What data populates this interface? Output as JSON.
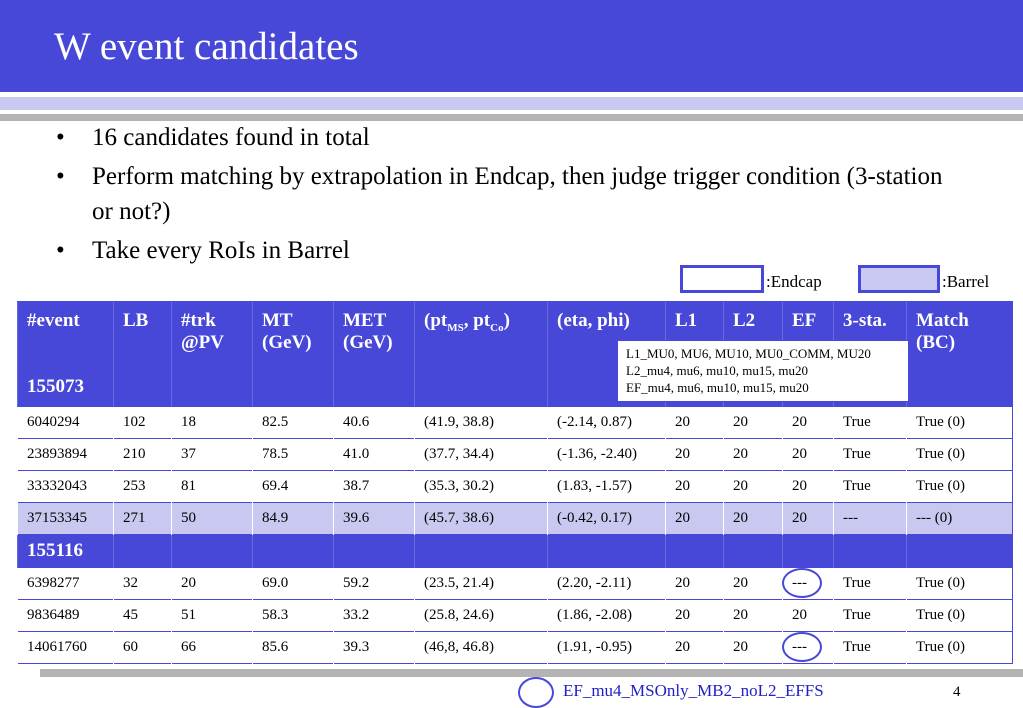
{
  "title": "W event candidates",
  "bullets": [
    "16 candidates found in total",
    "Perform matching by extrapolation in Endcap, then judge trigger condition (3-station or not?)",
    "Take every RoIs in Barrel"
  ],
  "legend": {
    "endcap_label": ":Endcap",
    "barrel_label": ":Barrel",
    "endcap_color": "#ffffff",
    "barrel_color": "#c8c8f0"
  },
  "table": {
    "headers": {
      "event": "#event",
      "lb": "LB",
      "trk_line1": "#trk",
      "trk_line2": "@PV",
      "mt_line1": "MT",
      "mt_line2": "(GeV)",
      "met_line1": "MET",
      "met_line2": "(GeV)",
      "pt_main": "(pt",
      "pt_sub1": "MS",
      "pt_sep": ", pt",
      "pt_sub2": "Co",
      "pt_end": ")",
      "etaphi": "(eta, phi)",
      "l1": "L1",
      "l2": "L2",
      "ef": "EF",
      "sta": "3-sta.",
      "match_line1": "Match",
      "match_line2": "(BC)"
    },
    "run1": "155073",
    "run2": "155116",
    "rows_run1": [
      {
        "event": "6040294",
        "lb": "102",
        "trk": "18",
        "mt": "82.5",
        "met": "40.6",
        "pt": "(41.9, 38.8)",
        "etaphi": "(-2.14, 0.87)",
        "l1": "20",
        "l2": "20",
        "ef": "20",
        "sta": "True",
        "match": "True (0)"
      },
      {
        "event": "23893894",
        "lb": "210",
        "trk": "37",
        "mt": "78.5",
        "met": "41.0",
        "pt": "(37.7, 34.4)",
        "etaphi": "(-1.36, -2.40)",
        "l1": "20",
        "l2": "20",
        "ef": "20",
        "sta": "True",
        "match": "True (0)"
      },
      {
        "event": "33332043",
        "lb": "253",
        "trk": "81",
        "mt": "69.4",
        "met": "38.7",
        "pt": "(35.3, 30.2)",
        "etaphi": "(1.83, -1.57)",
        "l1": "20",
        "l2": "20",
        "ef": "20",
        "sta": "True",
        "match": "True (0)"
      },
      {
        "event": "37153345",
        "lb": "271",
        "trk": "50",
        "mt": "84.9",
        "met": "39.6",
        "pt": "(45.7, 38.6)",
        "etaphi": "(-0.42, 0.17)",
        "l1": "20",
        "l2": "20",
        "ef": "20",
        "sta": "---",
        "match": "--- (0)"
      }
    ],
    "rows_run2": [
      {
        "event": "6398277",
        "lb": "32",
        "trk": "20",
        "mt": "69.0",
        "met": "59.2",
        "pt": "(23.5, 21.4)",
        "etaphi": "(2.20, -2.11)",
        "l1": "20",
        "l2": "20",
        "ef": "---",
        "sta": "True",
        "match": "True (0)"
      },
      {
        "event": "9836489",
        "lb": "45",
        "trk": "51",
        "mt": "58.3",
        "met": "33.2",
        "pt": "(25.8, 24.6)",
        "etaphi": "(1.86, -2.08)",
        "l1": "20",
        "l2": "20",
        "ef": "20",
        "sta": "True",
        "match": "True (0)"
      },
      {
        "event": "14061760",
        "lb": "60",
        "trk": "66",
        "mt": "85.6",
        "met": "39.3",
        "pt": "(46,8, 46.8)",
        "etaphi": "(1.91, -0.95)",
        "l1": "20",
        "l2": "20",
        "ef": "---",
        "sta": "True",
        "match": "True (0)"
      }
    ]
  },
  "trigger_box": [
    "L1_MU0, MU6, MU10, MU0_COMM, MU20",
    "L2_mu4, mu6, mu10, mu15, mu20",
    "EF_mu4, mu6, mu10, mu15, mu20"
  ],
  "footer": {
    "trigger_name": "EF_mu4_MSOnly_MB2_noL2_EFFS",
    "page_number": "4"
  },
  "colors": {
    "accent": "#4848d8",
    "barrel_row": "#c8c8f0",
    "footer_text": "#2020c8"
  }
}
